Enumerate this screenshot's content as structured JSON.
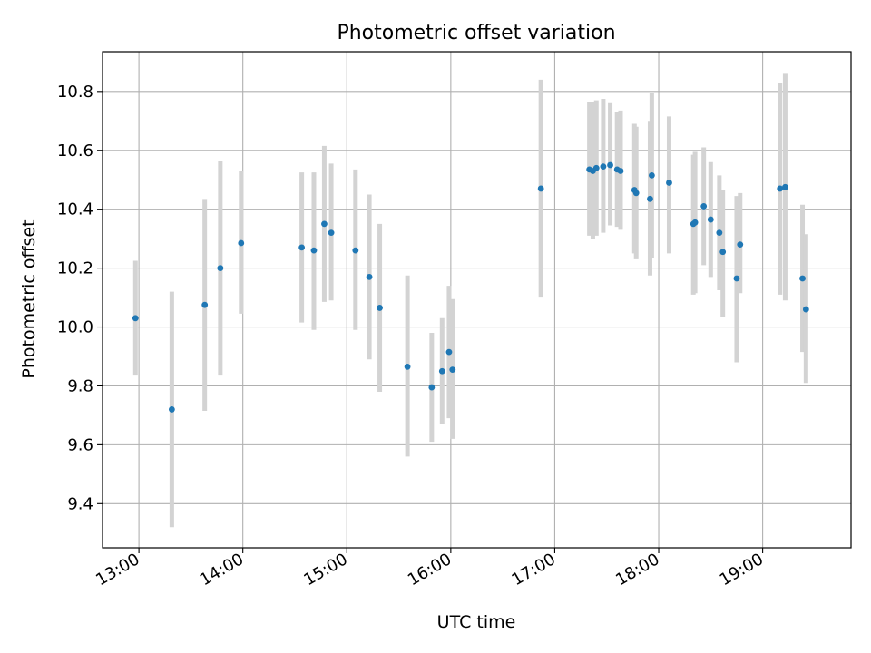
{
  "chart_data": {
    "type": "scatter",
    "title": "Photometric offset variation",
    "xlabel": "UTC time",
    "ylabel": "Photometric offset",
    "x_is_time": true,
    "xlim": [
      "12:39",
      "19:51"
    ],
    "ylim": [
      9.25,
      10.935
    ],
    "xticks": [
      "13:00",
      "14:00",
      "15:00",
      "16:00",
      "17:00",
      "18:00",
      "19:00"
    ],
    "yticks": [
      "9.4",
      "9.6",
      "9.8",
      "10.0",
      "10.2",
      "10.4",
      "10.6",
      "10.8"
    ],
    "grid": true,
    "marker_color": "#1f77b4",
    "errorbar_color": "#d3d3d3",
    "points": [
      {
        "t": "12:58",
        "y": 10.03,
        "lo": 9.835,
        "hi": 10.225
      },
      {
        "t": "13:19",
        "y": 9.72,
        "lo": 9.32,
        "hi": 10.12
      },
      {
        "t": "13:38",
        "y": 10.075,
        "lo": 9.715,
        "hi": 10.435
      },
      {
        "t": "13:47",
        "y": 10.2,
        "lo": 9.835,
        "hi": 10.565
      },
      {
        "t": "13:59",
        "y": 10.285,
        "lo": 10.045,
        "hi": 10.53
      },
      {
        "t": "14:34",
        "y": 10.27,
        "lo": 10.015,
        "hi": 10.525
      },
      {
        "t": "14:41",
        "y": 10.26,
        "lo": 9.99,
        "hi": 10.525
      },
      {
        "t": "14:47",
        "y": 10.35,
        "lo": 10.085,
        "hi": 10.615
      },
      {
        "t": "14:51",
        "y": 10.32,
        "lo": 10.09,
        "hi": 10.555
      },
      {
        "t": "15:05",
        "y": 10.26,
        "lo": 9.99,
        "hi": 10.535
      },
      {
        "t": "15:13",
        "y": 10.17,
        "lo": 9.89,
        "hi": 10.45
      },
      {
        "t": "15:19",
        "y": 10.065,
        "lo": 9.78,
        "hi": 10.35
      },
      {
        "t": "15:35",
        "y": 9.865,
        "lo": 9.56,
        "hi": 10.175
      },
      {
        "t": "15:49",
        "y": 9.795,
        "lo": 9.61,
        "hi": 9.98
      },
      {
        "t": "15:55",
        "y": 9.85,
        "lo": 9.67,
        "hi": 10.03
      },
      {
        "t": "15:59",
        "y": 9.915,
        "lo": 9.69,
        "hi": 10.14
      },
      {
        "t": "16:01",
        "y": 9.855,
        "lo": 9.62,
        "hi": 10.095
      },
      {
        "t": "16:52",
        "y": 10.47,
        "lo": 10.1,
        "hi": 10.84
      },
      {
        "t": "17:20",
        "y": 10.535,
        "lo": 10.31,
        "hi": 10.765
      },
      {
        "t": "17:22",
        "y": 10.53,
        "lo": 10.3,
        "hi": 10.765
      },
      {
        "t": "17:24",
        "y": 10.54,
        "lo": 10.31,
        "hi": 10.77
      },
      {
        "t": "17:28",
        "y": 10.545,
        "lo": 10.32,
        "hi": 10.775
      },
      {
        "t": "17:32",
        "y": 10.55,
        "lo": 10.345,
        "hi": 10.76
      },
      {
        "t": "17:36",
        "y": 10.535,
        "lo": 10.34,
        "hi": 10.73
      },
      {
        "t": "17:38",
        "y": 10.53,
        "lo": 10.33,
        "hi": 10.735
      },
      {
        "t": "17:46",
        "y": 10.465,
        "lo": 10.25,
        "hi": 10.69
      },
      {
        "t": "17:47",
        "y": 10.455,
        "lo": 10.23,
        "hi": 10.68
      },
      {
        "t": "17:55",
        "y": 10.435,
        "lo": 10.175,
        "hi": 10.7
      },
      {
        "t": "17:56",
        "y": 10.515,
        "lo": 10.235,
        "hi": 10.795
      },
      {
        "t": "18:06",
        "y": 10.49,
        "lo": 10.25,
        "hi": 10.715
      },
      {
        "t": "18:20",
        "y": 10.35,
        "lo": 10.11,
        "hi": 10.585
      },
      {
        "t": "18:21",
        "y": 10.355,
        "lo": 10.115,
        "hi": 10.595
      },
      {
        "t": "18:26",
        "y": 10.41,
        "lo": 10.21,
        "hi": 10.61
      },
      {
        "t": "18:30",
        "y": 10.365,
        "lo": 10.17,
        "hi": 10.56
      },
      {
        "t": "18:35",
        "y": 10.32,
        "lo": 10.125,
        "hi": 10.515
      },
      {
        "t": "18:37",
        "y": 10.255,
        "lo": 10.035,
        "hi": 10.465
      },
      {
        "t": "18:45",
        "y": 10.165,
        "lo": 9.88,
        "hi": 10.445
      },
      {
        "t": "18:47",
        "y": 10.28,
        "lo": 10.115,
        "hi": 10.455
      },
      {
        "t": "19:10",
        "y": 10.47,
        "lo": 10.11,
        "hi": 10.83
      },
      {
        "t": "19:13",
        "y": 10.475,
        "lo": 10.09,
        "hi": 10.86
      },
      {
        "t": "19:23",
        "y": 10.165,
        "lo": 9.915,
        "hi": 10.415
      },
      {
        "t": "19:25",
        "y": 10.06,
        "lo": 9.81,
        "hi": 10.315
      }
    ]
  }
}
